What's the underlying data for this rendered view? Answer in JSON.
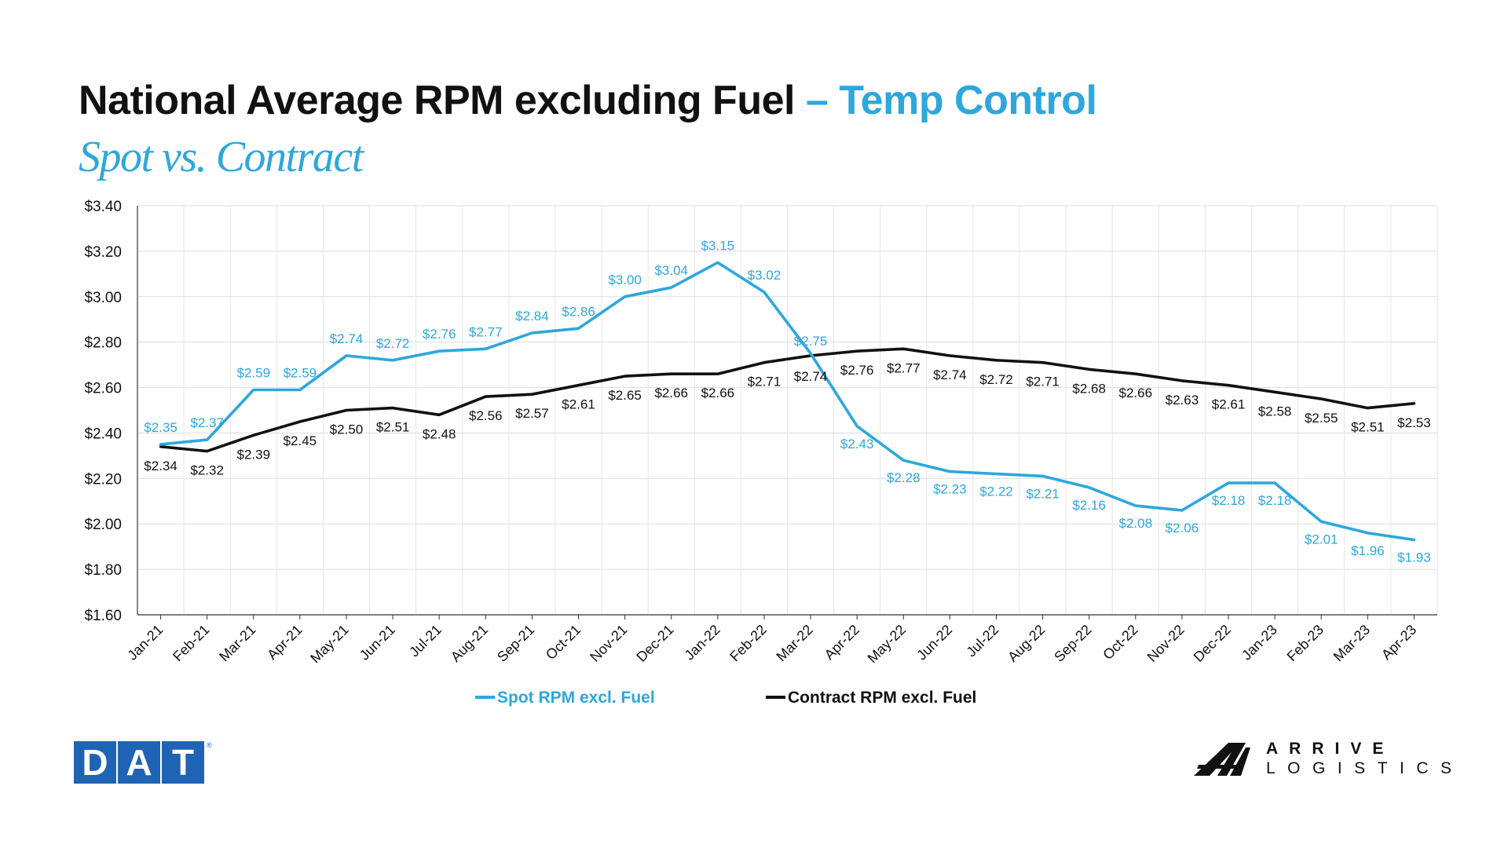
{
  "title_main": "National Average RPM excluding Fuel",
  "title_accent": "– Temp Control",
  "subtitle": "Spot vs. Contract",
  "colors": {
    "spot": "#2ea7dc",
    "contract": "#111111",
    "dat_blue": "#1f63b4"
  },
  "chart_data": {
    "type": "line",
    "categories": [
      "Jan-21",
      "Feb-21",
      "Mar-21",
      "Apr-21",
      "May-21",
      "Jun-21",
      "Jul-21",
      "Aug-21",
      "Sep-21",
      "Oct-21",
      "Nov-21",
      "Dec-21",
      "Jan-22",
      "Feb-22",
      "Mar-22",
      "Apr-22",
      "May-22",
      "Jun-22",
      "Jul-22",
      "Aug-22",
      "Sep-22",
      "Oct-22",
      "Nov-22",
      "Dec-22",
      "Jan-23",
      "Feb-23",
      "Mar-23",
      "Apr-23"
    ],
    "series": [
      {
        "name": "Spot RPM excl. Fuel",
        "color": "#2ea7dc",
        "values": [
          2.35,
          2.37,
          2.59,
          2.59,
          2.74,
          2.72,
          2.76,
          2.77,
          2.84,
          2.86,
          3.0,
          3.04,
          3.15,
          3.02,
          2.75,
          2.43,
          2.28,
          2.23,
          2.22,
          2.21,
          2.16,
          2.08,
          2.06,
          2.18,
          2.18,
          2.01,
          1.96,
          1.93
        ]
      },
      {
        "name": "Contract RPM excl. Fuel",
        "color": "#111111",
        "values": [
          2.34,
          2.32,
          2.39,
          2.45,
          2.5,
          2.51,
          2.48,
          2.56,
          2.57,
          2.61,
          2.65,
          2.66,
          2.66,
          2.71,
          2.74,
          2.76,
          2.77,
          2.74,
          2.72,
          2.71,
          2.68,
          2.66,
          2.63,
          2.61,
          2.58,
          2.55,
          2.51,
          2.53
        ]
      }
    ],
    "ylim": [
      1.6,
      3.4
    ],
    "yticks": [
      "$1.60",
      "$1.80",
      "$2.00",
      "$2.20",
      "$2.40",
      "$2.60",
      "$2.80",
      "$3.00",
      "$3.20",
      "$3.40"
    ],
    "ytick_values": [
      1.6,
      1.8,
      2.0,
      2.2,
      2.4,
      2.6,
      2.8,
      3.0,
      3.2,
      3.4
    ],
    "grid": true,
    "legend_position": "bottom"
  },
  "logos": {
    "dat": [
      "D",
      "A",
      "T"
    ],
    "dat_reg": "®",
    "arrive_line1": "ARRIVE",
    "arrive_line2": "LOGISTICS"
  }
}
